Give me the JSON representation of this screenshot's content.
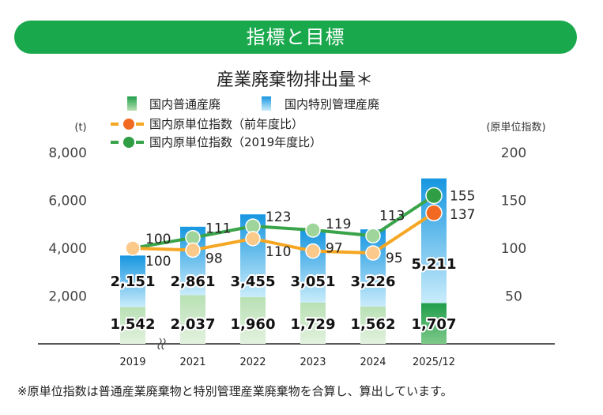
{
  "header": {
    "title": "指標と目標"
  },
  "chart_data": {
    "type": "bar",
    "title": "産業廃棄物排出量＊",
    "categories": [
      "2019",
      "2021",
      "2022",
      "2023",
      "2024",
      "2025/12"
    ],
    "series": [
      {
        "name": "国内普通産廃",
        "kind": "bar",
        "values": [
          1542,
          2037,
          1960,
          1729,
          1562,
          1707
        ]
      },
      {
        "name": "国内特別管理産廃",
        "kind": "bar",
        "values": [
          2151,
          2861,
          3455,
          3051,
          3226,
          5211
        ]
      },
      {
        "name": "国内原単位指数（前年度比）",
        "kind": "line",
        "axis": "right",
        "values": [
          100,
          98,
          110,
          97,
          95,
          137
        ]
      },
      {
        "name": "国内原単位指数（2019年度比）",
        "kind": "line",
        "axis": "right",
        "values": [
          100,
          111,
          123,
          119,
          113,
          155
        ]
      }
    ],
    "ylabel": "(t)",
    "y2label": "(原単位指数)",
    "ylim": [
      0,
      8000
    ],
    "y2lim": [
      0,
      200
    ],
    "yticks": [
      "2,000",
      "4,000",
      "6,000",
      "8,000"
    ],
    "yticks_values": [
      2000,
      4000,
      6000,
      8000
    ],
    "y2ticks": [
      "50",
      "100",
      "150",
      "200"
    ],
    "y2ticks_values": [
      50,
      100,
      150,
      200
    ],
    "bar_labels_general": [
      "1,542",
      "2,037",
      "1,960",
      "1,729",
      "1,562",
      "1,707"
    ],
    "bar_labels_special": [
      "2,151",
      "2,861",
      "3,455",
      "3,051",
      "3,226",
      "5,211"
    ],
    "colors": {
      "general_dark": "#1f9e4a",
      "general_light": "#b8e0b4",
      "special_dark": "#1796e0",
      "special_light": "#c9ecfb",
      "line_prev": "#f5a623",
      "marker_prev_past": "#fbc98a",
      "marker_prev_latest": "#f26a21",
      "line_base": "#3aa44a",
      "marker_base_past": "#9fd59b",
      "marker_base_latest": "#2f9e44"
    },
    "legend_position": "top-left",
    "grid": false
  },
  "footnote": "※原単位指数は普通産業廃棄物と特別管理産業廃棄物を合算し、算出しています。"
}
